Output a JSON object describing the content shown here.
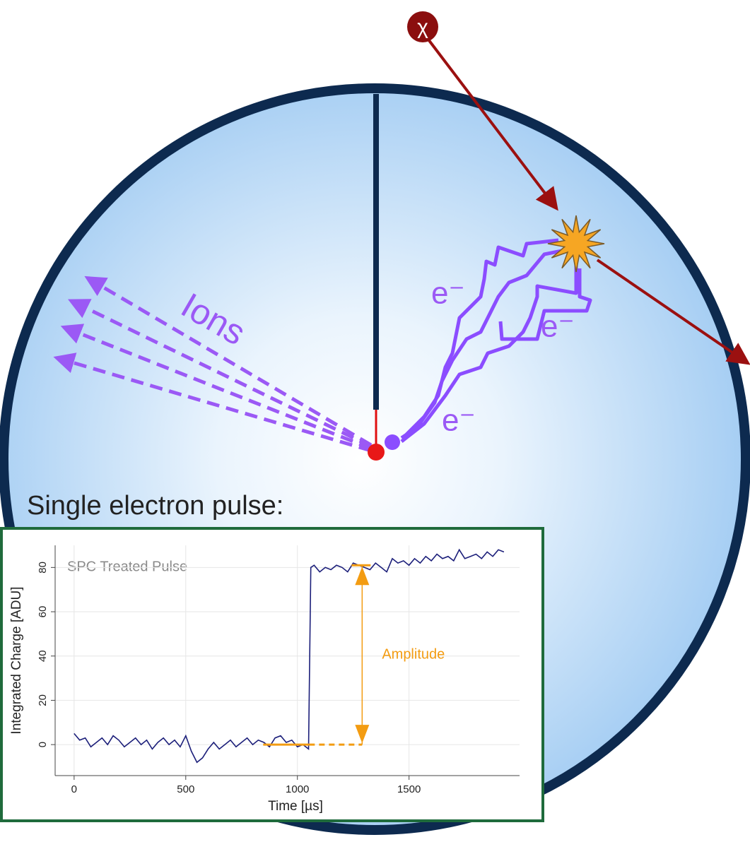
{
  "diagram": {
    "chi_label": "χ",
    "ions_label": "Ions",
    "electron_labels": [
      "e⁻",
      "e⁻",
      "e⁻"
    ],
    "caption": "Single electron pulse:"
  },
  "chart_data": {
    "type": "line",
    "title": "SPC Treated Pulse",
    "x_label": "Time [µs]",
    "y_label": "Integrated Charge [ADU]",
    "x": [
      0,
      25,
      50,
      75,
      100,
      125,
      150,
      175,
      200,
      225,
      250,
      275,
      300,
      325,
      350,
      375,
      400,
      425,
      450,
      475,
      500,
      525,
      550,
      575,
      600,
      625,
      650,
      675,
      700,
      725,
      750,
      775,
      800,
      825,
      850,
      875,
      900,
      925,
      950,
      975,
      1000,
      1025,
      1050,
      1060,
      1075,
      1100,
      1125,
      1150,
      1175,
      1200,
      1225,
      1250,
      1275,
      1300,
      1325,
      1350,
      1375,
      1400,
      1425,
      1450,
      1475,
      1500,
      1525,
      1550,
      1575,
      1600,
      1625,
      1650,
      1675,
      1700,
      1725,
      1750,
      1775,
      1800,
      1825,
      1850,
      1875,
      1900,
      1925
    ],
    "values": [
      5,
      2,
      3,
      -1,
      1,
      3,
      0,
      4,
      2,
      -1,
      1,
      3,
      0,
      2,
      -2,
      1,
      3,
      0,
      2,
      -1,
      4,
      -3,
      -8,
      -6,
      -2,
      1,
      -2,
      0,
      2,
      -1,
      1,
      3,
      0,
      2,
      1,
      -1,
      3,
      4,
      1,
      2,
      -1,
      0,
      -2,
      80,
      81,
      78,
      80,
      79,
      81,
      80,
      78,
      82,
      81,
      80,
      79,
      82,
      80,
      78,
      84,
      82,
      83,
      81,
      84,
      82,
      85,
      83,
      86,
      84,
      85,
      83,
      88,
      84,
      85,
      86,
      84,
      87,
      85,
      88,
      87
    ],
    "color": "#1c1f7a",
    "xlim": [
      -85,
      1995
    ],
    "ylim": [
      -14,
      90
    ],
    "xticks": [
      0,
      500,
      1000,
      1500
    ],
    "yticks": [
      0,
      20,
      40,
      60,
      80
    ],
    "grid": true,
    "annotation": {
      "text": "Amplitude",
      "x": 1290,
      "from": 0,
      "to": 81,
      "color": "#f39c12"
    }
  }
}
